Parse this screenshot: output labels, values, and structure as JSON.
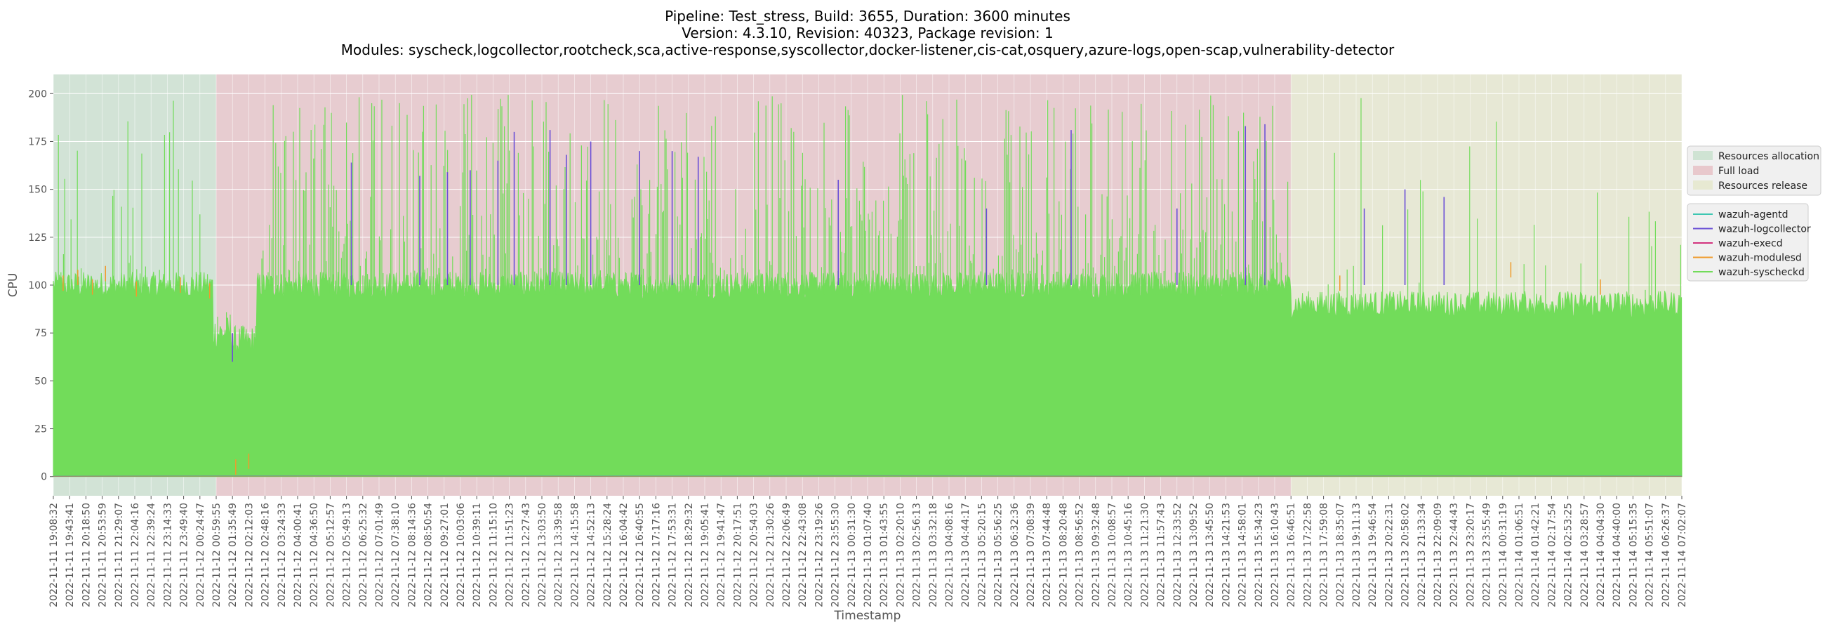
{
  "chart_data": {
    "type": "line",
    "title_lines": [
      "Pipeline: Test_stress, Build: 3655, Duration: 3600 minutes",
      "Version: 4.3.10, Revision: 40323, Package revision: 1",
      "Modules: syscheck,logcollector,rootcheck,sca,active-response,syscollector,docker-listener,cis-cat,osquery,azure-logs,open-scap,vulnerability-detector"
    ],
    "xlabel": "Timestamp",
    "ylabel": "CPU",
    "ylim": [
      -10,
      210
    ],
    "yticks": [
      0,
      25,
      50,
      75,
      100,
      125,
      150,
      175,
      200
    ],
    "grid": true,
    "x_tick_labels": [
      "2022-11-11 19:08:32",
      "2022-11-11 19:43:41",
      "2022-11-11 20:18:50",
      "2022-11-11 20:53:59",
      "2022-11-11 21:29:07",
      "2022-11-11 22:04:16",
      "2022-11-11 22:39:24",
      "2022-11-11 23:14:33",
      "2022-11-11 23:49:40",
      "2022-11-12 00:24:47",
      "2022-11-12 00:59:55",
      "2022-11-12 01:35:49",
      "2022-11-12 02:12:03",
      "2022-11-12 02:48:16",
      "2022-11-12 03:24:33",
      "2022-11-12 04:00:41",
      "2022-11-12 04:36:50",
      "2022-11-12 05:12:57",
      "2022-11-12 05:49:13",
      "2022-11-12 06:25:32",
      "2022-11-12 07:01:49",
      "2022-11-12 07:38:10",
      "2022-11-12 08:14:36",
      "2022-11-12 08:50:54",
      "2022-11-12 09:27:01",
      "2022-11-12 10:03:06",
      "2022-11-12 10:39:11",
      "2022-11-12 11:15:10",
      "2022-11-12 11:51:23",
      "2022-11-12 12:27:43",
      "2022-11-12 13:03:50",
      "2022-11-12 13:39:58",
      "2022-11-12 14:15:58",
      "2022-11-12 14:52:13",
      "2022-11-12 15:28:24",
      "2022-11-12 16:04:42",
      "2022-11-12 16:40:55",
      "2022-11-12 17:17:16",
      "2022-11-12 17:53:31",
      "2022-11-12 18:29:32",
      "2022-11-12 19:05:41",
      "2022-11-12 19:41:47",
      "2022-11-12 20:17:51",
      "2022-11-12 20:54:03",
      "2022-11-12 21:30:26",
      "2022-11-12 22:06:49",
      "2022-11-12 22:43:08",
      "2022-11-12 23:19:26",
      "2022-11-12 23:55:30",
      "2022-11-13 00:31:30",
      "2022-11-13 01:07:40",
      "2022-11-13 01:43:55",
      "2022-11-13 02:20:10",
      "2022-11-13 02:56:13",
      "2022-11-13 03:32:18",
      "2022-11-13 04:08:16",
      "2022-11-13 04:44:17",
      "2022-11-13 05:20:15",
      "2022-11-13 05:56:25",
      "2022-11-13 06:32:36",
      "2022-11-13 07:08:39",
      "2022-11-13 07:44:48",
      "2022-11-13 08:20:48",
      "2022-11-13 08:56:52",
      "2022-11-13 09:32:48",
      "2022-11-13 10:08:57",
      "2022-11-13 10:45:16",
      "2022-11-13 11:21:30",
      "2022-11-13 11:57:43",
      "2022-11-13 12:33:52",
      "2022-11-13 13:09:52",
      "2022-11-13 13:45:50",
      "2022-11-13 14:21:53",
      "2022-11-13 14:58:01",
      "2022-11-13 15:34:23",
      "2022-11-13 16:10:43",
      "2022-11-13 16:46:51",
      "2022-11-13 17:22:58",
      "2022-11-13 17:59:08",
      "2022-11-13 18:35:07",
      "2022-11-13 19:11:13",
      "2022-11-13 19:46:54",
      "2022-11-13 20:22:31",
      "2022-11-13 20:58:02",
      "2022-11-13 21:33:34",
      "2022-11-13 22:09:09",
      "2022-11-13 22:44:43",
      "2022-11-13 23:20:17",
      "2022-11-13 23:55:49",
      "2022-11-14 00:31:19",
      "2022-11-14 01:06:51",
      "2022-11-14 01:42:21",
      "2022-11-14 02:17:54",
      "2022-11-14 02:53:25",
      "2022-11-14 03:28:57",
      "2022-11-14 04:04:30",
      "2022-11-14 04:40:00",
      "2022-11-14 05:15:35",
      "2022-11-14 05:51:07",
      "2022-11-14 06:26:37",
      "2022-11-14 07:02:07"
    ],
    "phases": [
      {
        "name": "Resources allocation",
        "start_tick": 0,
        "end_tick": 10,
        "color": "#cfe3d3"
      },
      {
        "name": "Full load",
        "start_tick": 10,
        "end_tick": 76,
        "color": "#e8c8cc"
      },
      {
        "name": "Resources release",
        "start_tick": 76,
        "end_tick": 101,
        "color": "#e7e9d2"
      }
    ],
    "series": [
      {
        "name": "wazuh-agentd",
        "color": "#3ec7b2",
        "values": [
          0.3,
          0.5,
          0.4,
          0.6,
          0.3,
          0.5,
          0.4
        ]
      },
      {
        "name": "wazuh-logcollector",
        "color": "#6a4fd6",
        "spikes": [
          [
            18.3,
            164
          ],
          [
            22.5,
            157
          ],
          [
            24.2,
            159
          ],
          [
            25.6,
            160
          ],
          [
            27.3,
            165
          ],
          [
            28.3,
            180
          ],
          [
            30.5,
            181
          ],
          [
            33.0,
            175
          ],
          [
            31.5,
            168
          ],
          [
            36.0,
            170
          ],
          [
            38.0,
            170
          ],
          [
            39.6,
            167
          ],
          [
            48.2,
            155
          ],
          [
            57.3,
            140
          ],
          [
            62.5,
            181
          ],
          [
            69.0,
            140
          ],
          [
            74.4,
            184
          ],
          [
            80.5,
            140
          ],
          [
            83.0,
            150
          ],
          [
            85.4,
            146
          ],
          [
            73.2,
            183
          ],
          [
            11.0,
            60
          ]
        ]
      },
      {
        "name": "wazuh-execd",
        "color": "#d2327e",
        "values": [
          0.2,
          0.3,
          0.2,
          0.3,
          0.2,
          0.3,
          0.2
        ]
      },
      {
        "name": "wazuh-modulesd",
        "color": "#ef9b2d",
        "spikes": [
          [
            0.6,
            105
          ],
          [
            1.5,
            108
          ],
          [
            2.4,
            103
          ],
          [
            3.2,
            110
          ],
          [
            5.1,
            102
          ],
          [
            7.8,
            104
          ],
          [
            9.6,
            101
          ],
          [
            11.2,
            9
          ],
          [
            12.0,
            12
          ],
          [
            79.0,
            105
          ],
          [
            89.5,
            112
          ],
          [
            95.0,
            103
          ]
        ]
      },
      {
        "name": "wazuh-syscheckd",
        "color": "#72dc5a",
        "levels": [
          {
            "from_tick": 0,
            "to_tick": 9.8,
            "base": 100,
            "spike_max": 200
          },
          {
            "from_tick": 9.8,
            "to_tick": 11.0,
            "base": 75,
            "spike_max": 92
          },
          {
            "from_tick": 11.0,
            "to_tick": 12.5,
            "base": 70,
            "spike_max": 85
          },
          {
            "from_tick": 12.5,
            "to_tick": 76,
            "base": 100,
            "spike_max": 200
          },
          {
            "from_tick": 76,
            "to_tick": 101,
            "base": 90,
            "spike_max": 200
          }
        ]
      }
    ],
    "legend": {
      "placement": "right"
    }
  }
}
